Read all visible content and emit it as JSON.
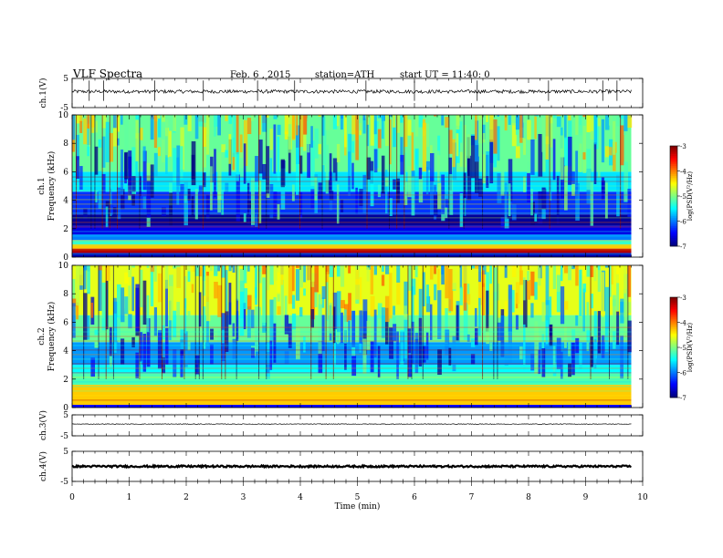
{
  "header": {
    "title": "VLF  Spectra",
    "date": "Feb. 6  , 2015",
    "station": "station=ATH",
    "start": "start  UT  =   11:40: 0"
  },
  "chart_data": [
    {
      "id": "ch1-waveform",
      "type": "line",
      "ylabel": "ch.1(V)",
      "ylim": [
        -5,
        5
      ],
      "y_ticks": [
        "5",
        "-5"
      ],
      "xlim": [
        0,
        10
      ],
      "data_end_min": 9.8,
      "baseline_v": 0.5,
      "noise_amplitude_v": 0.6,
      "spikes": [
        0.3,
        0.55,
        1.45,
        2.3,
        3.25,
        3.9,
        5.15,
        6.0,
        7.1,
        8.35,
        9.3,
        9.55
      ]
    },
    {
      "id": "ch1-spectrogram",
      "type": "heatmap",
      "ylabel": "ch.1\nFrequency  (kHz)",
      "ylim": [
        0,
        10
      ],
      "y_ticks": [
        "0",
        "2",
        "4",
        "6",
        "8",
        "10"
      ],
      "xlim": [
        0,
        10
      ],
      "data_end_min": 9.8,
      "colorbar": {
        "label": "log(PSD(V²/Hz)",
        "range": [
          -7,
          -3
        ],
        "ticks": [
          "-3",
          "-4",
          "-5",
          "-6",
          "-7"
        ]
      },
      "bands": [
        {
          "f0": 0,
          "f1": 0.3,
          "psd": -6.8
        },
        {
          "f0": 0.3,
          "f1": 0.6,
          "psd": -3.2
        },
        {
          "f0": 0.6,
          "f1": 0.9,
          "psd": -4.3
        },
        {
          "f0": 0.9,
          "f1": 1.2,
          "psd": -5.3
        },
        {
          "f0": 1.2,
          "f1": 1.6,
          "psd": -6.0
        },
        {
          "f0": 1.6,
          "f1": 2.2,
          "psd": -6.6
        },
        {
          "f0": 2.2,
          "f1": 3.0,
          "psd": -6.9
        },
        {
          "f0": 3.0,
          "f1": 4.6,
          "psd": -6.3
        },
        {
          "f0": 4.6,
          "f1": 6.0,
          "psd": -5.6
        },
        {
          "f0": 6.0,
          "f1": 10.0,
          "psd": -5.1
        }
      ]
    },
    {
      "id": "ch2-spectrogram",
      "type": "heatmap",
      "ylabel": "ch.2\nFrequency  (kHz)",
      "ylim": [
        0,
        10
      ],
      "y_ticks": [
        "0",
        "2",
        "4",
        "6",
        "8",
        "10"
      ],
      "xlim": [
        0,
        10
      ],
      "data_end_min": 9.8,
      "colorbar": {
        "label": "log(PSD(V²/Hz)",
        "range": [
          -7,
          -3
        ],
        "ticks": [
          "-3",
          "-4",
          "-5",
          "-6",
          "-7"
        ]
      },
      "bands": [
        {
          "f0": 0,
          "f1": 0.2,
          "psd": -6.5
        },
        {
          "f0": 0.2,
          "f1": 1.6,
          "psd": -4.3
        },
        {
          "f0": 1.6,
          "f1": 2.4,
          "psd": -5.2
        },
        {
          "f0": 2.4,
          "f1": 3.0,
          "psd": -5.5
        },
        {
          "f0": 3.0,
          "f1": 4.6,
          "psd": -5.9
        },
        {
          "f0": 4.6,
          "f1": 6.5,
          "psd": -5.1
        },
        {
          "f0": 6.5,
          "f1": 10.0,
          "psd": -4.6
        }
      ]
    },
    {
      "id": "ch3-waveform",
      "type": "line",
      "ylabel": "ch.3(V)",
      "ylim": [
        -5,
        5
      ],
      "y_ticks": [
        "5",
        "-5"
      ],
      "xlim": [
        0,
        10
      ],
      "data_end_min": 9.8,
      "baseline_v": 0.6,
      "noise_amplitude_v": 0.15,
      "spikes": []
    },
    {
      "id": "ch4-waveform",
      "type": "line",
      "ylabel": "ch.4(V)",
      "ylim": [
        -5,
        5
      ],
      "y_ticks": [
        "5",
        "-5"
      ],
      "xlim": [
        0,
        10
      ],
      "data_end_min": 9.8,
      "baseline_v": 0,
      "noise_amplitude_v": 0.3,
      "spikes": []
    }
  ],
  "x_axis": {
    "label": "Time  (min)",
    "ticks": [
      "0",
      "1",
      "2",
      "3",
      "4",
      "5",
      "6",
      "7",
      "8",
      "9",
      "10"
    ]
  }
}
